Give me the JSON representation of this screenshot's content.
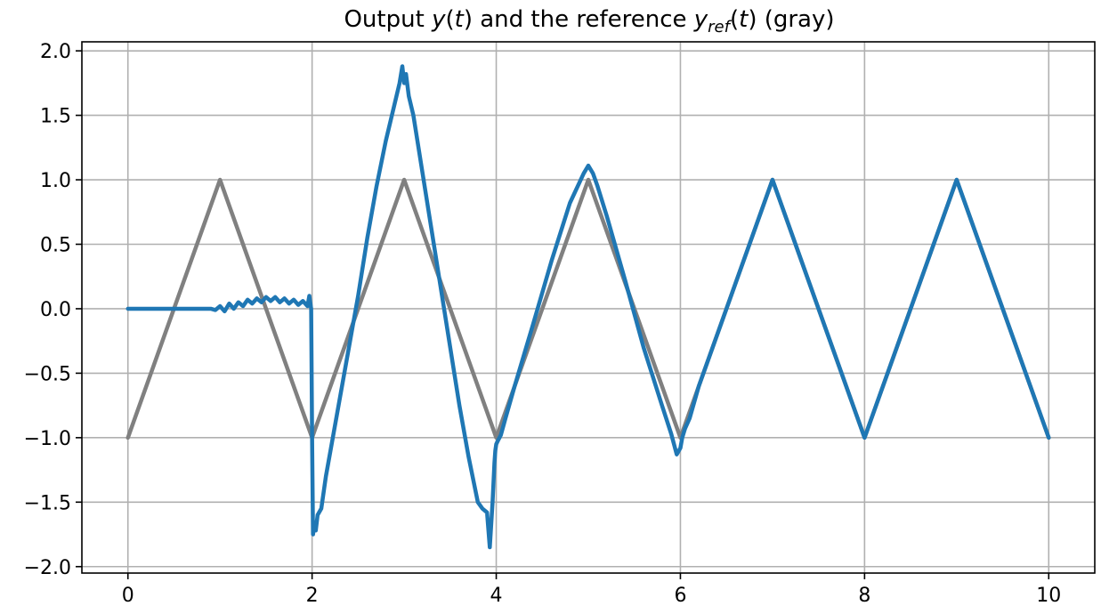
{
  "chart_data": {
    "type": "line",
    "title_parts": {
      "prefix": "Output ",
      "y": "y",
      "open1": "(",
      "t1": "t",
      "mid": ") and the reference ",
      "yref": "y",
      "ref_sub": "ref",
      "open2": "(",
      "t2": "t",
      "suffix": ") (gray)"
    },
    "xlabel": "",
    "ylabel": "",
    "xlim": [
      -0.5,
      10.5
    ],
    "ylim": [
      -2.05,
      2.07
    ],
    "xticks": [
      0,
      2,
      4,
      6,
      8,
      10
    ],
    "xtick_labels": [
      "0",
      "2",
      "4",
      "6",
      "8",
      "10"
    ],
    "yticks": [
      2.0,
      1.5,
      1.0,
      0.5,
      0.0,
      -0.5,
      -1.0,
      -1.5,
      -2.0
    ],
    "ytick_labels": [
      "2.0",
      "1.5",
      "1.0",
      "0.5",
      "0.0",
      "−0.5",
      "−1.0",
      "−1.5",
      "−2.0"
    ],
    "grid": true,
    "series": [
      {
        "color": "#808080",
        "x": [
          0,
          1,
          2,
          3,
          4,
          5,
          6,
          7,
          8,
          9,
          10
        ],
        "y": [
          -1,
          1,
          -1,
          1,
          -1,
          1,
          -1,
          1,
          -1,
          1,
          -1
        ]
      },
      {
        "color": "#1f77b4",
        "x": [
          0,
          0.5,
          0.9,
          0.95,
          1.0,
          1.05,
          1.1,
          1.15,
          1.2,
          1.25,
          1.3,
          1.35,
          1.4,
          1.45,
          1.5,
          1.55,
          1.6,
          1.65,
          1.7,
          1.75,
          1.8,
          1.85,
          1.9,
          1.95,
          1.97,
          1.99,
          2.0,
          2.01,
          2.02,
          2.04,
          2.06,
          2.1,
          2.15,
          2.2,
          2.3,
          2.4,
          2.5,
          2.6,
          2.7,
          2.8,
          2.9,
          2.95,
          2.98,
          3.0,
          3.02,
          3.05,
          3.1,
          3.2,
          3.3,
          3.4,
          3.5,
          3.6,
          3.7,
          3.8,
          3.85,
          3.9,
          3.93,
          3.96,
          3.98,
          3.99,
          4.0,
          4.02,
          4.05,
          4.1,
          4.2,
          4.4,
          4.6,
          4.8,
          4.95,
          5.0,
          5.05,
          5.1,
          5.2,
          5.4,
          5.6,
          5.8,
          5.9,
          5.93,
          5.96,
          6.0,
          6.02,
          6.05,
          6.1,
          6.2,
          6.5,
          6.8,
          7.0,
          7.2,
          7.5,
          7.8,
          8.0,
          8.2,
          8.5,
          8.8,
          9.0,
          9.2,
          9.5,
          9.8,
          10.0
        ],
        "y": [
          0.0,
          0.0,
          0.0,
          -0.01,
          0.02,
          -0.02,
          0.04,
          0.0,
          0.05,
          0.02,
          0.07,
          0.04,
          0.08,
          0.05,
          0.09,
          0.06,
          0.09,
          0.05,
          0.08,
          0.04,
          0.07,
          0.03,
          0.06,
          0.02,
          0.1,
          0.0,
          -1.0,
          -1.75,
          -1.7,
          -1.72,
          -1.6,
          -1.55,
          -1.3,
          -1.1,
          -0.7,
          -0.3,
          0.1,
          0.55,
          0.95,
          1.3,
          1.6,
          1.75,
          1.88,
          1.75,
          1.82,
          1.65,
          1.5,
          1.05,
          0.6,
          0.15,
          -0.3,
          -0.75,
          -1.15,
          -1.5,
          -1.55,
          -1.58,
          -1.85,
          -1.5,
          -1.2,
          -1.1,
          -1.05,
          -1.02,
          -0.98,
          -0.85,
          -0.6,
          -0.12,
          0.37,
          0.82,
          1.05,
          1.11,
          1.05,
          0.95,
          0.72,
          0.22,
          -0.3,
          -0.75,
          -0.97,
          -1.05,
          -1.13,
          -1.08,
          -1.0,
          -0.93,
          -0.85,
          -0.6,
          0.0,
          0.6,
          1.0,
          0.6,
          0.0,
          -0.6,
          -1.0,
          -0.6,
          0.0,
          0.6,
          1.0,
          0.6,
          0.0,
          -0.6,
          -1.0
        ]
      }
    ]
  }
}
